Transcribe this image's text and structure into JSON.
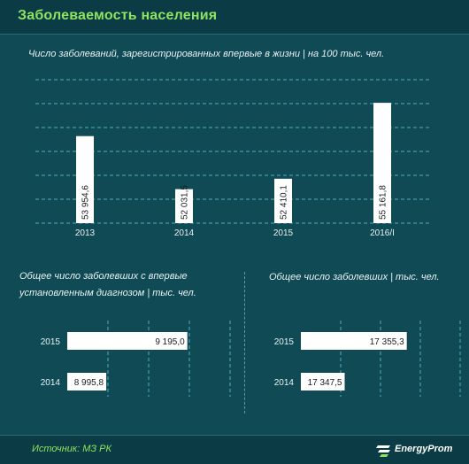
{
  "header": {
    "title": "Заболеваемость  населения"
  },
  "footer": {
    "source": "Источник: МЗ РК",
    "brand": "EnergyProm",
    "brand_icon": "energyprom-logo-icon"
  },
  "colors": {
    "background": "#0f4a55",
    "bar": "#ffffff",
    "title_accent": "#8fe35f",
    "grid": "#4fb0bf"
  },
  "chart_data": [
    {
      "type": "bar",
      "orientation": "vertical",
      "title": "Число заболеваний, зарегистрированных впервые в жизни | на 100 тыс. чел.",
      "categories": [
        "2013",
        "2014",
        "2015",
        "2016/I"
      ],
      "values": [
        53954.6,
        52031.5,
        52410.1,
        55161.8
      ],
      "value_labels": [
        "53 954,6",
        "52 031,5",
        "52 410,1",
        "55 161,8"
      ],
      "ylim": [
        50800,
        56000
      ],
      "grid": true
    },
    {
      "type": "bar",
      "orientation": "horizontal",
      "title_lines": [
        "Общее число заболевших с впервые",
        "установленным диагнозом  | тыс. чел."
      ],
      "categories": [
        "2015",
        "2014"
      ],
      "values": [
        9195.0,
        8995.8
      ],
      "value_labels": [
        "9 195,0",
        "8 995,8"
      ],
      "xlim": [
        8900,
        9300
      ],
      "grid": true
    },
    {
      "type": "bar",
      "orientation": "horizontal",
      "title_lines": [
        "Общее число заболевших  | тыс. чел."
      ],
      "categories": [
        "2015",
        "2014"
      ],
      "values": [
        17355.3,
        17347.5
      ],
      "value_labels": [
        "17 355,3",
        "17 347,5"
      ],
      "xlim": [
        17342,
        17362
      ],
      "grid": true
    }
  ]
}
